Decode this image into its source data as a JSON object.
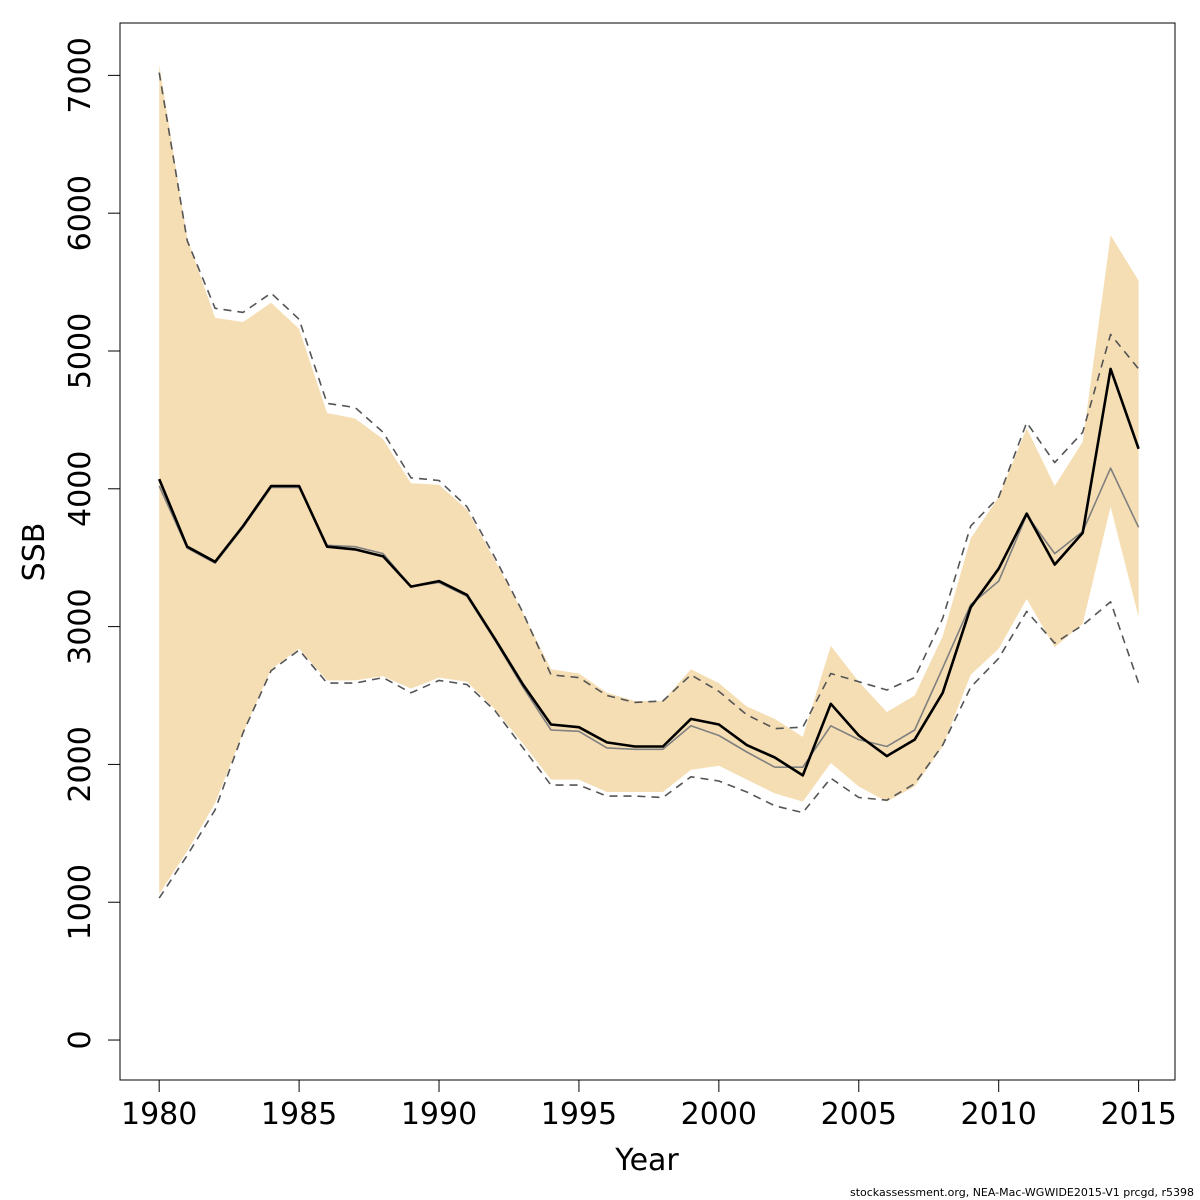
{
  "chart_data": {
    "type": "line",
    "xlabel": "Year",
    "ylabel": "SSB",
    "xlim": [
      1978.6,
      2016.3
    ],
    "ylim": [
      -290,
      7380
    ],
    "x_ticks": [
      1980,
      1985,
      1990,
      1995,
      2000,
      2005,
      2010,
      2015
    ],
    "y_ticks": [
      0,
      1000,
      2000,
      3000,
      4000,
      5000,
      6000,
      7000
    ],
    "x": [
      1980,
      1981,
      1982,
      1983,
      1984,
      1985,
      1986,
      1987,
      1988,
      1989,
      1990,
      1991,
      1992,
      1993,
      1994,
      1995,
      1996,
      1997,
      1998,
      1999,
      2000,
      2001,
      2002,
      2003,
      2004,
      2005,
      2006,
      2007,
      2008,
      2009,
      2010,
      2011,
      2012,
      2013,
      2014,
      2015
    ],
    "band": {
      "upper": [
        7080,
        5820,
        5240,
        5210,
        5350,
        5160,
        4550,
        4510,
        4360,
        4040,
        4030,
        3850,
        3480,
        3100,
        2690,
        2660,
        2520,
        2460,
        2460,
        2690,
        2590,
        2420,
        2330,
        2200,
        2860,
        2600,
        2380,
        2500,
        2930,
        3640,
        3940,
        4440,
        4020,
        4340,
        5840,
        5510
      ],
      "lower": [
        1060,
        1370,
        1720,
        2230,
        2690,
        2840,
        2610,
        2610,
        2640,
        2550,
        2630,
        2600,
        2400,
        2150,
        1890,
        1890,
        1800,
        1800,
        1800,
        1960,
        1990,
        1890,
        1790,
        1730,
        2010,
        1840,
        1730,
        1840,
        2130,
        2650,
        2840,
        3200,
        2850,
        3020,
        3870,
        3070
      ],
      "color": "#f5deb3"
    },
    "series": [
      {
        "values": [
          4070,
          3580,
          3470,
          3730,
          4020,
          4020,
          3580,
          3560,
          3510,
          3290,
          3330,
          3230,
          2910,
          2580,
          2290,
          2270,
          2160,
          2130,
          2130,
          2330,
          2290,
          2140,
          2050,
          1920,
          2440,
          2210,
          2060,
          2180,
          2520,
          3140,
          3420,
          3820,
          3450,
          3680,
          4870,
          4290
        ],
        "color": "#000000",
        "style": "solid"
      },
      {
        "values": [
          4020,
          3570,
          3460,
          3720,
          4010,
          4010,
          3590,
          3580,
          3530,
          3290,
          3320,
          3220,
          2900,
          2560,
          2250,
          2240,
          2120,
          2110,
          2110,
          2280,
          2210,
          2090,
          1980,
          1980,
          2280,
          2180,
          2130,
          2250,
          2700,
          3160,
          3330,
          3810,
          3530,
          3690,
          4150,
          3720
        ],
        "color": "#808080",
        "style": "solid"
      },
      {
        "values": [
          7020,
          5800,
          5310,
          5280,
          5420,
          5230,
          4620,
          4590,
          4410,
          4080,
          4060,
          3870,
          3500,
          3100,
          2650,
          2630,
          2500,
          2450,
          2460,
          2650,
          2530,
          2360,
          2260,
          2270,
          2660,
          2600,
          2540,
          2630,
          3060,
          3730,
          3940,
          4480,
          4190,
          4410,
          5120,
          4870
        ],
        "color": "#555555",
        "style": "dashed"
      },
      {
        "values": [
          1030,
          1340,
          1670,
          2230,
          2680,
          2830,
          2590,
          2590,
          2630,
          2520,
          2610,
          2580,
          2390,
          2120,
          1850,
          1850,
          1770,
          1770,
          1760,
          1910,
          1880,
          1800,
          1700,
          1650,
          1900,
          1760,
          1740,
          1860,
          2140,
          2560,
          2770,
          3110,
          2880,
          3010,
          3180,
          2590
        ],
        "color": "#555555",
        "style": "dashed"
      }
    ]
  },
  "footer": {
    "credit": "stockassessment.org, NEA-Mac-WGWIDE2015-V1 prcgd, r5398"
  }
}
